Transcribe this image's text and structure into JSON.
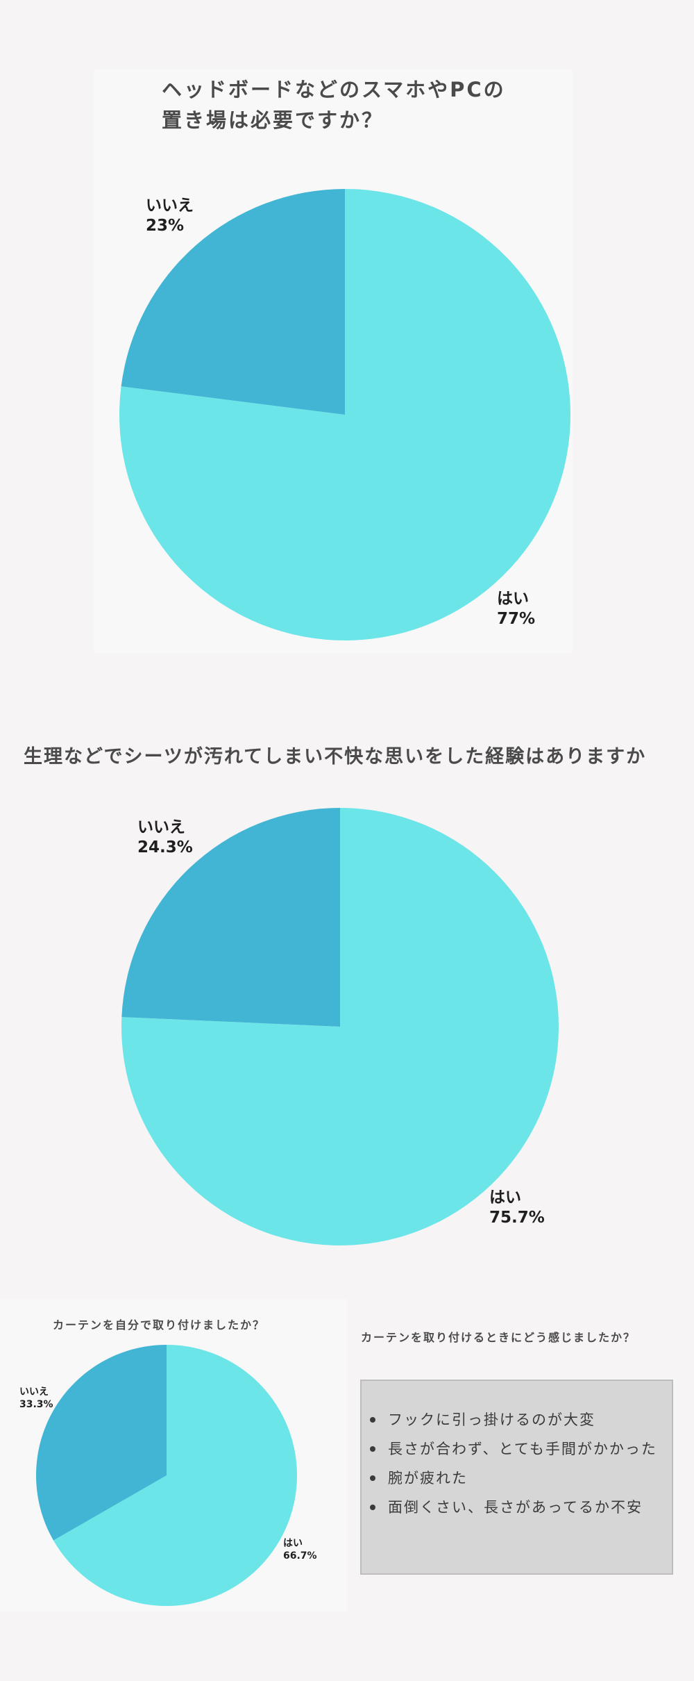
{
  "colors": {
    "yes": "#6ce5e9",
    "no": "#41b5d3",
    "background": "#f6f4f5"
  },
  "chart_data": [
    {
      "type": "pie",
      "title": [
        "ヘッドボードなどのスマホやPCの",
        "置き場は必要ですか？"
      ],
      "slices": [
        {
          "label": "はい",
          "value": 77,
          "display": "77%",
          "color": "#6ce5e9"
        },
        {
          "label": "いいえ",
          "value": 23,
          "display": "23%",
          "color": "#41b5d3"
        }
      ]
    },
    {
      "type": "pie",
      "title": [
        "生理などでシーツが汚れてしまい不快な思いをした経験はありますか"
      ],
      "slices": [
        {
          "label": "はい",
          "value": 75.7,
          "display": "75.7%",
          "color": "#6ce5e9"
        },
        {
          "label": "いいえ",
          "value": 24.3,
          "display": "24.3%",
          "color": "#41b5d3"
        }
      ]
    },
    {
      "type": "pie",
      "title": [
        "カーテンを自分で取り付けましたか？"
      ],
      "slices": [
        {
          "label": "はい",
          "value": 66.7,
          "display": "66.7%",
          "color": "#6ce5e9"
        },
        {
          "label": "いいえ",
          "value": 33.3,
          "display": "33.3%",
          "color": "#41b5d3"
        }
      ]
    }
  ],
  "feedback": {
    "title": "カーテンを取り付けるときにどう感じましたか？",
    "items": [
      "フックに引っ掛けるのが大変",
      "長さが合わず、とても手間がかかった",
      "腕が疲れた",
      "面倒くさい、長さがあってるか不安"
    ]
  }
}
